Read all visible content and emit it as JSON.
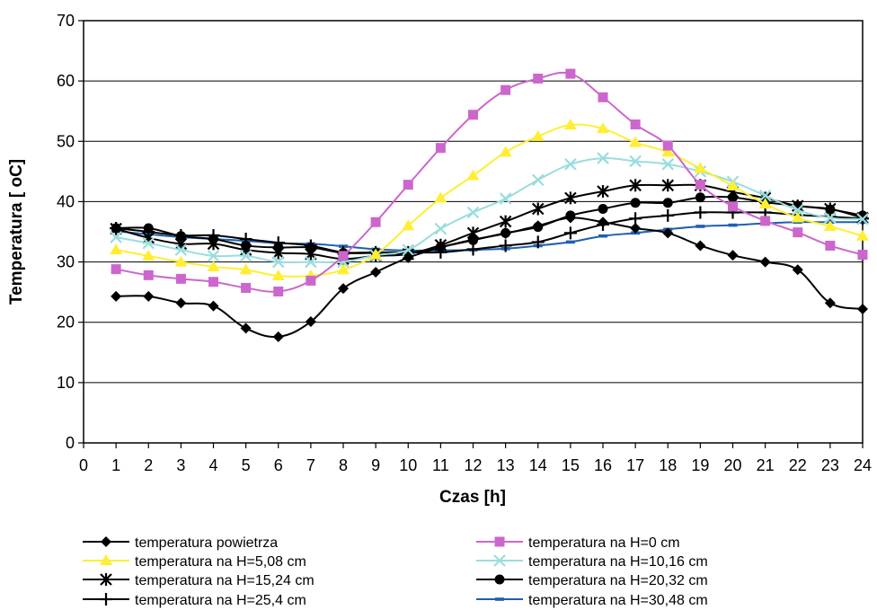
{
  "chart_data": {
    "type": "line",
    "title": "",
    "xlabel": "Czas [h]",
    "ylabel": "Temperatura [ oC]",
    "xlim": [
      0,
      24
    ],
    "ylim": [
      0,
      70
    ],
    "x_ticks": [
      "0",
      "1",
      "2",
      "3",
      "4",
      "5",
      "6",
      "7",
      "8",
      "9",
      "10",
      "11",
      "12",
      "13",
      "14",
      "15",
      "16",
      "17",
      "18",
      "19",
      "20",
      "21",
      "22",
      "23",
      "24"
    ],
    "y_ticks": [
      "0",
      "10",
      "20",
      "30",
      "40",
      "50",
      "60",
      "70"
    ],
    "grid": "horizontal",
    "legend_position": "bottom",
    "x": [
      1,
      2,
      3,
      4,
      5,
      6,
      7,
      8,
      9,
      10,
      11,
      12,
      13,
      14,
      15,
      16,
      17,
      18,
      19,
      20,
      21,
      22,
      23,
      24
    ],
    "series": [
      {
        "name": "temperatura powietrza",
        "color": "#000000",
        "marker": "diamond",
        "values": [
          24.3,
          24.3,
          23.2,
          22.7,
          19.0,
          17.6,
          20.1,
          25.6,
          28.3,
          30.7,
          32.4,
          33.7,
          34.7,
          36.0,
          37.3,
          36.6,
          35.6,
          34.8,
          32.7,
          31.1,
          30.0,
          28.7,
          23.2,
          22.2
        ]
      },
      {
        "name": "temperatura na H=0 cm",
        "color": "#cc66cc",
        "marker": "square",
        "values": [
          28.8,
          27.8,
          27.2,
          26.7,
          25.7,
          25.1,
          26.9,
          31.0,
          36.6,
          42.8,
          48.9,
          54.4,
          58.5,
          60.4,
          61.2,
          57.3,
          52.8,
          49.3,
          42.8,
          39.2,
          36.8,
          34.9,
          32.7,
          31.2
        ]
      },
      {
        "name": "temperatura na H=5,08 cm",
        "color": "#ffee33",
        "marker": "triangle",
        "values": [
          32.0,
          31.0,
          30.0,
          29.2,
          28.7,
          27.7,
          27.7,
          28.7,
          31.2,
          36.0,
          40.6,
          44.3,
          48.2,
          50.8,
          52.7,
          52.1,
          49.8,
          48.2,
          45.5,
          42.6,
          39.6,
          37.3,
          35.9,
          34.3
        ]
      },
      {
        "name": "temperatura na H=10,16 cm",
        "color": "#99dddd",
        "marker": "x",
        "values": [
          34.1,
          33.1,
          32.0,
          31.0,
          31.0,
          30.0,
          30.0,
          30.0,
          31.1,
          32.0,
          35.5,
          38.2,
          40.5,
          43.6,
          46.2,
          47.2,
          46.7,
          46.2,
          45.0,
          43.3,
          41.0,
          38.6,
          37.3,
          37.1
        ]
      },
      {
        "name": "temperatura na H=15,24 cm",
        "color": "#000000",
        "marker": "asterisk",
        "values": [
          35.5,
          34.0,
          33.0,
          33.0,
          32.0,
          31.5,
          31.3,
          30.5,
          31.0,
          31.3,
          32.8,
          34.8,
          36.7,
          38.8,
          40.6,
          41.7,
          42.7,
          42.7,
          42.7,
          41.6,
          40.6,
          39.3,
          38.8,
          37.3
        ]
      },
      {
        "name": "temperatura na H=20,32 cm",
        "color": "#000000",
        "marker": "circle",
        "values": [
          35.6,
          35.6,
          34.3,
          33.8,
          32.7,
          32.4,
          32.4,
          31.5,
          31.5,
          31.5,
          32.5,
          33.6,
          34.8,
          35.8,
          37.7,
          38.8,
          39.8,
          39.8,
          40.7,
          40.7,
          39.9,
          39.3,
          38.7,
          37.7
        ]
      },
      {
        "name": "temperatura na H=25,4 cm",
        "color": "#000000",
        "marker": "plus",
        "values": [
          35.6,
          35.0,
          34.4,
          34.4,
          33.8,
          33.2,
          32.7,
          31.6,
          31.6,
          31.6,
          31.6,
          32.1,
          32.7,
          33.3,
          34.8,
          36.2,
          37.2,
          37.7,
          38.2,
          38.2,
          38.2,
          37.8,
          37.5,
          37.2
        ]
      },
      {
        "name": "temperatura na H=30,48 cm",
        "color": "#1f5fae",
        "marker": "dash",
        "values": [
          35.1,
          34.6,
          34.1,
          33.8,
          33.5,
          33.1,
          33.0,
          32.6,
          32.1,
          31.9,
          31.9,
          32.0,
          32.2,
          32.7,
          33.3,
          34.3,
          34.8,
          35.4,
          35.9,
          36.1,
          36.4,
          36.6,
          36.6,
          36.6
        ]
      }
    ]
  }
}
